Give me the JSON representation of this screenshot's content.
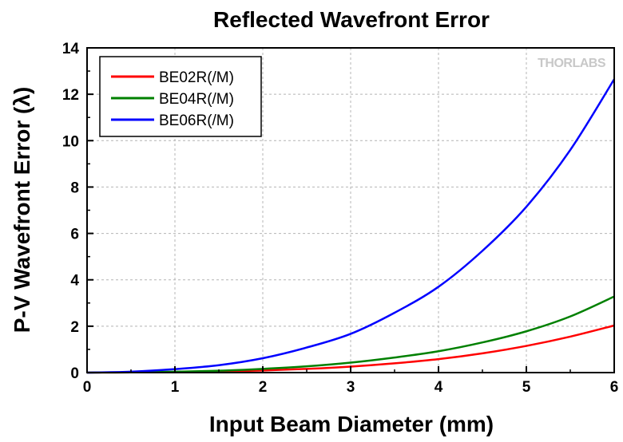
{
  "chart_data": {
    "type": "line",
    "title": "Reflected Wavefront Error",
    "xlabel": "Input Beam Diameter (mm)",
    "ylabel": "P-V Wavefront Error (λ)",
    "xlim": [
      0,
      6
    ],
    "ylim": [
      0,
      14
    ],
    "xticks": [
      0,
      1,
      2,
      3,
      4,
      5,
      6
    ],
    "yticks": [
      0,
      2,
      4,
      6,
      8,
      10,
      12,
      14
    ],
    "grid": true,
    "legend_position": "top-left",
    "watermark": "THORLABS",
    "x": [
      0,
      0.5,
      1,
      1.5,
      2,
      2.5,
      3,
      3.5,
      4,
      4.5,
      5,
      5.5,
      6
    ],
    "series": [
      {
        "name": "BE02R(/M)",
        "color": "#ff0000",
        "values": [
          0,
          0.01,
          0.02,
          0.05,
          0.09,
          0.16,
          0.26,
          0.4,
          0.58,
          0.83,
          1.15,
          1.55,
          2.03
        ]
      },
      {
        "name": "BE04R(/M)",
        "color": "#008000",
        "values": [
          0,
          0.01,
          0.04,
          0.08,
          0.16,
          0.27,
          0.43,
          0.65,
          0.92,
          1.3,
          1.78,
          2.42,
          3.28
        ]
      },
      {
        "name": "BE06R(/M)",
        "color": "#0000ff",
        "values": [
          0,
          0.04,
          0.15,
          0.32,
          0.62,
          1.08,
          1.67,
          2.58,
          3.7,
          5.25,
          7.15,
          9.6,
          12.65
        ]
      }
    ]
  }
}
